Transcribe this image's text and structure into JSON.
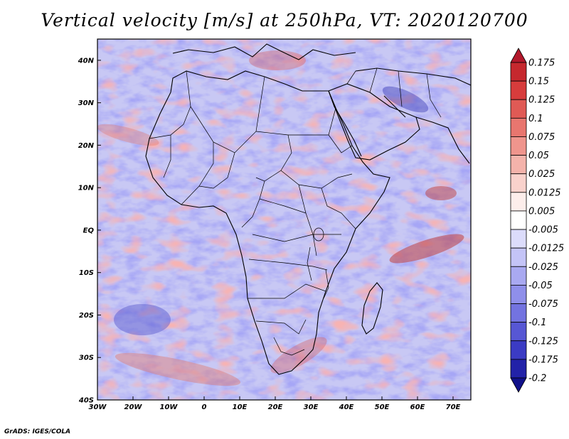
{
  "title": "Vertical velocity [m/s] at 250hPa, VT: 2020120700",
  "credit": "GrADS: IGES/COLA",
  "map": {
    "type": "shaded field map",
    "lon_range": [
      -30,
      75
    ],
    "lat_range": [
      -40,
      45
    ],
    "lat_ticks": [
      "40N",
      "30N",
      "20N",
      "10N",
      "EQ",
      "10S",
      "20S",
      "30S",
      "40S"
    ],
    "lon_ticks": [
      "30W",
      "20W",
      "10W",
      "0",
      "10E",
      "20E",
      "30E",
      "40E",
      "50E",
      "60E",
      "70E"
    ],
    "region": "Africa and surrounding oceans"
  },
  "colorbar": {
    "levels": [
      "0.175",
      "0.15",
      "0.125",
      "0.1",
      "0.075",
      "0.05",
      "0.025",
      "0.0125",
      "0.005",
      "-0.005",
      "-0.0125",
      "-0.025",
      "-0.05",
      "-0.075",
      "-0.1",
      "-0.125",
      "-0.175",
      "-0.2"
    ],
    "colors": [
      "#b2182b",
      "#c6282e",
      "#d73c3c",
      "#e05a55",
      "#e8766f",
      "#ef958d",
      "#f4b3ab",
      "#f9d2cc",
      "#fdeeeb",
      "#ffffff",
      "#dcdcfb",
      "#c4c4f7",
      "#a9a9f1",
      "#8f8fea",
      "#7373e0",
      "#5757d4",
      "#3b3bc4",
      "#2222a8",
      "#10108a"
    ]
  }
}
